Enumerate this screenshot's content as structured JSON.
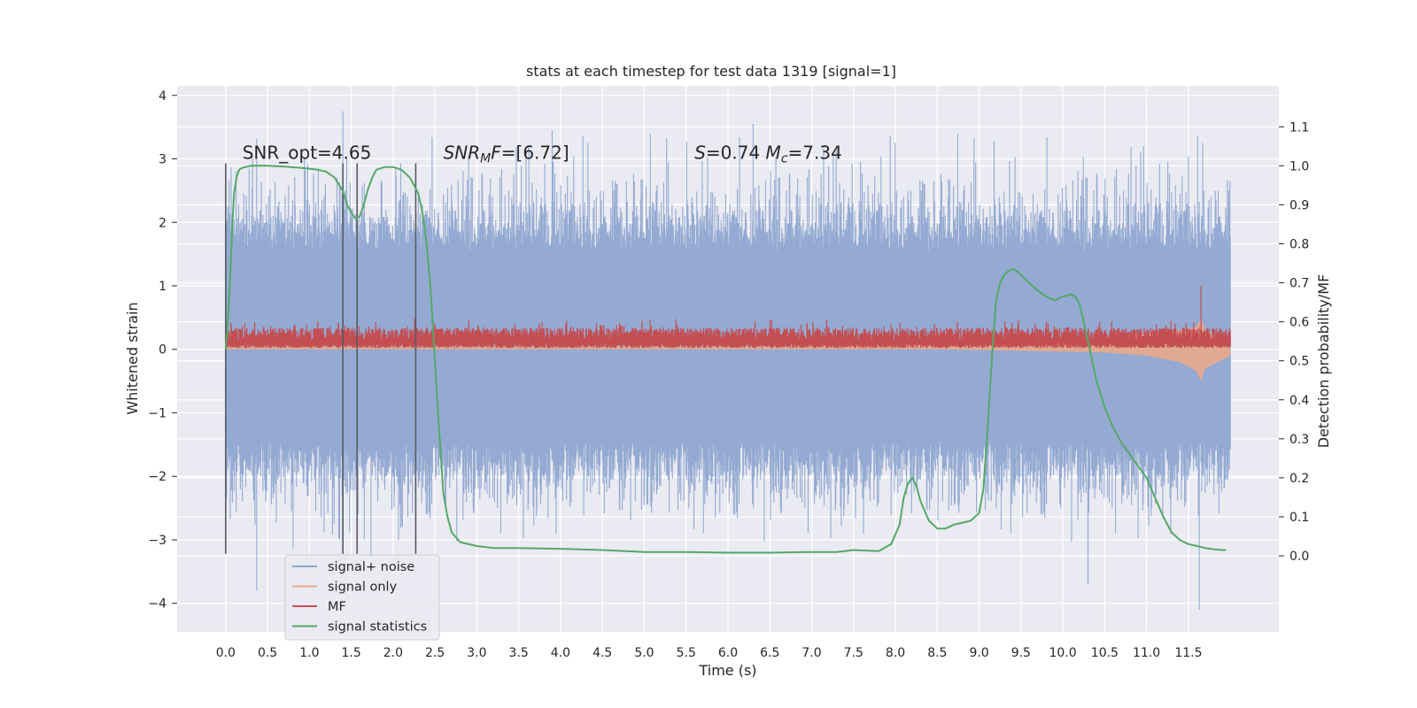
{
  "chart_data": {
    "type": "line",
    "title": "stats at each timestep for test data 1319 [signal=1]",
    "xlabel": "Time (s)",
    "ylabel": "Whitened strain",
    "ylabel_right": "Detection probability/MF",
    "xlim": [
      -0.58,
      12.58
    ],
    "ylim": [
      -4.45,
      4.15
    ],
    "ylim_right": [
      -0.195,
      1.205
    ],
    "x_ticks": [
      "0.0",
      "0.5",
      "1.0",
      "1.5",
      "2.0",
      "2.5",
      "3.0",
      "3.5",
      "4.0",
      "4.5",
      "5.0",
      "5.5",
      "6.0",
      "6.5",
      "7.0",
      "7.5",
      "8.0",
      "8.5",
      "9.0",
      "9.5",
      "10.0",
      "10.5",
      "11.0",
      "11.5"
    ],
    "y_ticks": [
      "−4",
      "−3",
      "−2",
      "−1",
      "0",
      "1",
      "2",
      "3",
      "4"
    ],
    "y_ticks_right": [
      "0.0",
      "0.1",
      "0.2",
      "0.3",
      "0.4",
      "0.5",
      "0.6",
      "0.7",
      "0.8",
      "0.9",
      "1.0",
      "1.1"
    ],
    "grid": true,
    "legend_position": "lower-left",
    "annotations": [
      {
        "text": "SNR_opt=4.65",
        "x": 0.2,
        "y": 3.1
      },
      {
        "text": "SNR_MF=[6.72]",
        "x": 2.6,
        "y": 3.1
      },
      {
        "text": "S=0.74   M_c=7.34",
        "x": 5.6,
        "y": 3.1
      }
    ],
    "vertical_markers": [
      0.0,
      1.4,
      1.57,
      2.27
    ],
    "series": [
      {
        "name": "signal+ noise",
        "color": "#8fa6d0",
        "axis": "left",
        "x_range": [
          0.0,
          12.0
        ],
        "envelope_typical": [
          -1.6,
          1.8
        ],
        "extremes": [
          [
            1.4,
            3.75
          ],
          [
            0.37,
            -3.8
          ],
          [
            11.63,
            -4.1
          ],
          [
            6.3,
            3.55
          ],
          [
            3.9,
            3.45
          ],
          [
            10.3,
            -3.7
          ]
        ]
      },
      {
        "name": "signal only",
        "color": "#e8a98a",
        "axis": "left",
        "x": [
          0.0,
          2.0,
          4.0,
          6.0,
          7.5,
          8.5,
          9.5,
          10.5,
          11.0,
          11.4,
          11.6,
          11.65,
          11.7,
          12.0
        ],
        "y_lower": [
          0.0,
          0.0,
          0.0,
          0.0,
          0.0,
          0.0,
          -0.02,
          -0.05,
          -0.1,
          -0.2,
          -0.35,
          -0.5,
          -0.3,
          -0.1
        ],
        "y_upper": [
          0.05,
          0.05,
          0.05,
          0.05,
          0.06,
          0.08,
          0.12,
          0.18,
          0.25,
          0.3,
          0.35,
          0.5,
          0.3,
          0.1
        ]
      },
      {
        "name": "MF",
        "color": "#c44e52",
        "axis": "left",
        "x_range": [
          0.0,
          12.0
        ],
        "band": [
          0.0,
          0.45
        ],
        "spike": [
          11.65,
          1.0
        ]
      },
      {
        "name": "signal statistics",
        "color": "#55a868",
        "axis": "right",
        "x": [
          0.0,
          0.02,
          0.05,
          0.08,
          0.1,
          0.13,
          0.16,
          0.2,
          0.3,
          0.5,
          0.7,
          0.9,
          1.1,
          1.2,
          1.3,
          1.4,
          1.45,
          1.5,
          1.55,
          1.6,
          1.65,
          1.7,
          1.75,
          1.8,
          1.9,
          2.0,
          2.1,
          2.2,
          2.3,
          2.35,
          2.4,
          2.45,
          2.5,
          2.55,
          2.6,
          2.65,
          2.7,
          2.8,
          3.0,
          3.2,
          3.5,
          4.0,
          4.5,
          5.0,
          5.5,
          6.0,
          6.5,
          7.0,
          7.3,
          7.5,
          7.8,
          7.95,
          8.05,
          8.1,
          8.15,
          8.2,
          8.25,
          8.3,
          8.4,
          8.5,
          8.6,
          8.7,
          8.8,
          8.9,
          9.0,
          9.05,
          9.1,
          9.15,
          9.2,
          9.25,
          9.3,
          9.35,
          9.4,
          9.45,
          9.5,
          9.6,
          9.7,
          9.8,
          9.9,
          10.0,
          10.1,
          10.15,
          10.2,
          10.25,
          10.3,
          10.4,
          10.5,
          10.6,
          10.7,
          10.8,
          10.9,
          11.0,
          11.1,
          11.2,
          11.3,
          11.4,
          11.5,
          11.6,
          11.7,
          11.8,
          11.9,
          11.95
        ],
        "y": [
          0.53,
          0.58,
          0.7,
          0.85,
          0.93,
          0.97,
          0.99,
          0.995,
          1.0,
          1.0,
          0.998,
          0.995,
          0.99,
          0.985,
          0.97,
          0.935,
          0.9,
          0.88,
          0.865,
          0.87,
          0.9,
          0.94,
          0.97,
          0.99,
          0.997,
          0.997,
          0.99,
          0.97,
          0.93,
          0.88,
          0.8,
          0.68,
          0.5,
          0.32,
          0.16,
          0.1,
          0.06,
          0.035,
          0.025,
          0.02,
          0.02,
          0.018,
          0.015,
          0.01,
          0.01,
          0.008,
          0.008,
          0.01,
          0.01,
          0.015,
          0.012,
          0.03,
          0.08,
          0.15,
          0.185,
          0.2,
          0.18,
          0.14,
          0.09,
          0.07,
          0.07,
          0.08,
          0.085,
          0.09,
          0.11,
          0.17,
          0.32,
          0.5,
          0.65,
          0.7,
          0.72,
          0.73,
          0.735,
          0.73,
          0.72,
          0.7,
          0.68,
          0.665,
          0.655,
          0.665,
          0.67,
          0.665,
          0.645,
          0.6,
          0.55,
          0.45,
          0.38,
          0.33,
          0.29,
          0.26,
          0.23,
          0.2,
          0.15,
          0.1,
          0.06,
          0.04,
          0.03,
          0.025,
          0.02,
          0.017,
          0.015,
          0.015
        ]
      }
    ]
  }
}
